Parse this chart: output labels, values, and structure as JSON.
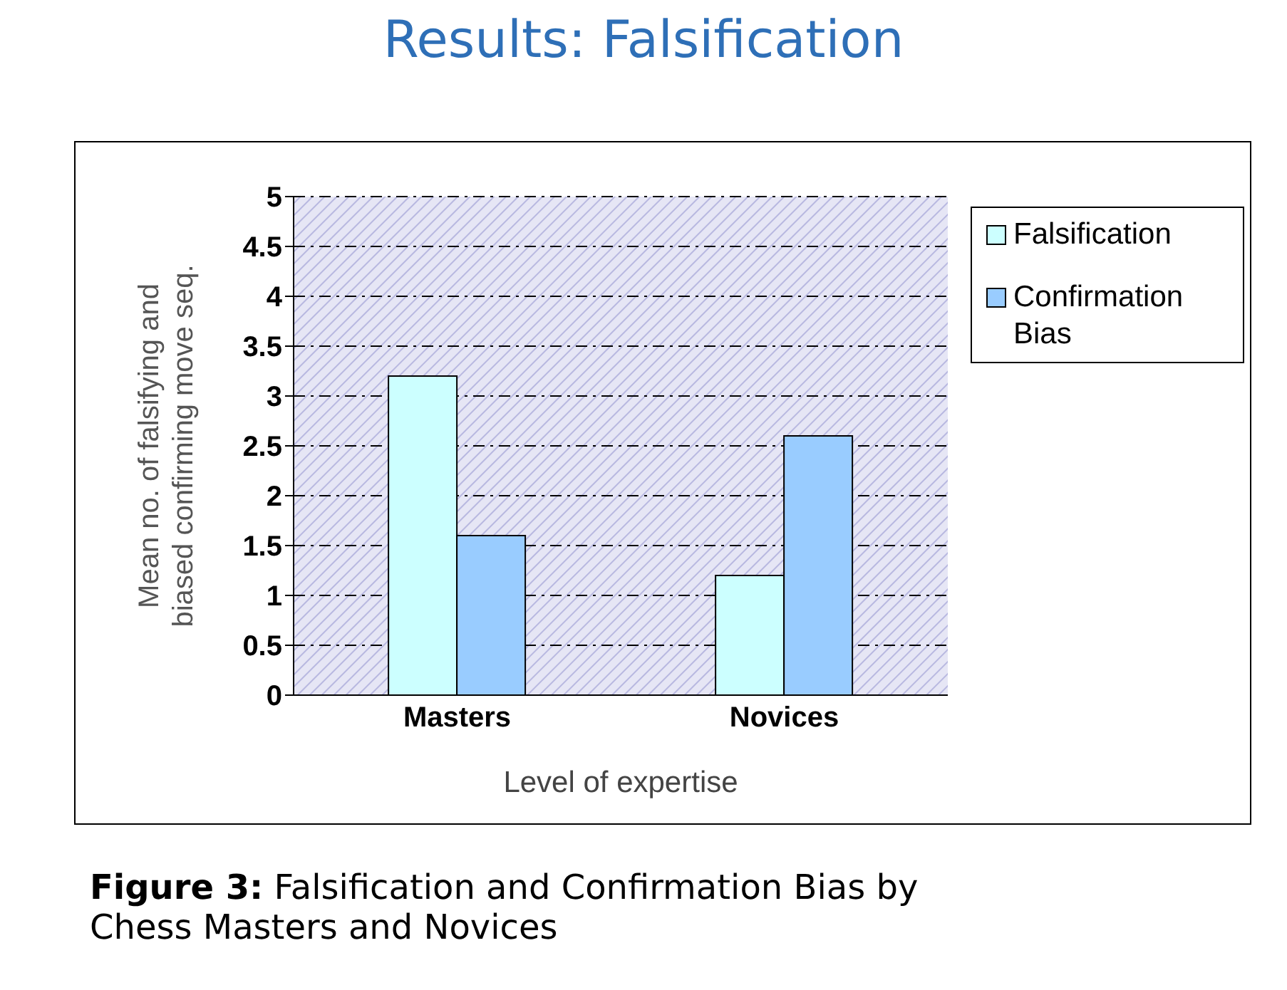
{
  "chart_data": {
    "type": "bar",
    "title": "Results: Falsification",
    "xlabel": "Level of expertise",
    "ylabel": "Mean no. of falsifying and biased confirming move seq.",
    "categories": [
      "Masters",
      "Novices"
    ],
    "series": [
      {
        "name": "Falsification",
        "color": "#ccffff",
        "values": [
          3.2,
          1.2
        ]
      },
      {
        "name": "Confirmation Bias",
        "color": "#99ccff",
        "values": [
          1.6,
          2.6
        ]
      }
    ],
    "ylim": [
      0,
      5
    ],
    "yticks": [
      0,
      0.5,
      1,
      1.5,
      2,
      2.5,
      3,
      3.5,
      4,
      4.5,
      5
    ],
    "grid": "y",
    "legend": "right",
    "annotations": [
      "Figure 3: Falsification and Confirmation Bias by Chess Masters and Novices"
    ]
  }
}
